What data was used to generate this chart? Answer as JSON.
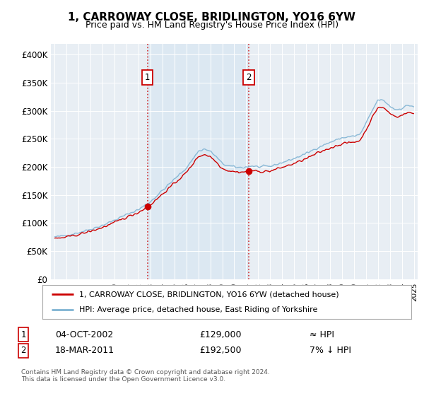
{
  "title": "1, CARROWAY CLOSE, BRIDLINGTON, YO16 6YW",
  "subtitle": "Price paid vs. HM Land Registry's House Price Index (HPI)",
  "sale1_date": "04-OCT-2002",
  "sale1_price": 129000,
  "sale2_date": "18-MAR-2011",
  "sale2_price": 192500,
  "legend_line1": "1, CARROWAY CLOSE, BRIDLINGTON, YO16 6YW (detached house)",
  "legend_line2": "HPI: Average price, detached house, East Riding of Yorkshire",
  "footer": "Contains HM Land Registry data © Crown copyright and database right 2024.\nThis data is licensed under the Open Government Licence v3.0.",
  "red_color": "#cc0000",
  "blue_color": "#7fb3d3",
  "bg_color_main": "#e8eef5",
  "bg_color_shaded": "#dae6f0",
  "bg_color_right": "#f0f0f0",
  "ylim": [
    0,
    420000
  ],
  "sale1_x": 2002.75,
  "sale2_x": 2011.21,
  "xlim_left": 1994.7,
  "xlim_right": 2025.3
}
